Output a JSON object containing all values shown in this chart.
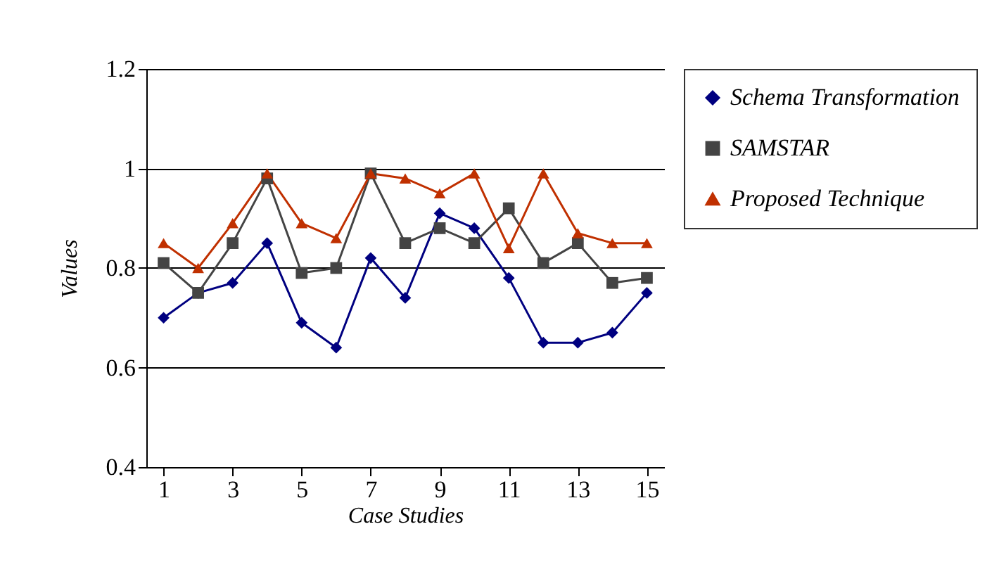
{
  "chart_data": {
    "type": "line",
    "xlabel": "Case Studies",
    "ylabel": "Values",
    "x": [
      1,
      2,
      3,
      4,
      5,
      6,
      7,
      8,
      9,
      10,
      11,
      12,
      13,
      14,
      15
    ],
    "xlim": [
      0.5,
      15.5
    ],
    "xticks": [
      1,
      3,
      5,
      7,
      9,
      11,
      13,
      15
    ],
    "ylim": [
      0.4,
      1.2
    ],
    "yticks": [
      0.4,
      0.6,
      0.8,
      1,
      1.2
    ],
    "grid": "y",
    "legend": "right",
    "series": [
      {
        "name": "Schema Transformation",
        "color": "#000080",
        "marker": "diamond",
        "values": [
          0.7,
          0.75,
          0.77,
          0.85,
          0.69,
          0.64,
          0.82,
          0.74,
          0.91,
          0.88,
          0.78,
          0.65,
          0.65,
          0.67,
          0.75
        ]
      },
      {
        "name": "SAMSTAR",
        "color": "#444444",
        "marker": "square",
        "values": [
          0.81,
          0.75,
          0.85,
          0.98,
          0.79,
          0.8,
          0.99,
          0.85,
          0.88,
          0.85,
          0.92,
          0.81,
          0.85,
          0.77,
          0.78
        ]
      },
      {
        "name": "Proposed Technique",
        "color": "#c03000",
        "marker": "triangle",
        "values": [
          0.85,
          0.8,
          0.89,
          0.99,
          0.89,
          0.86,
          0.99,
          0.98,
          0.95,
          0.99,
          0.84,
          0.99,
          0.87,
          0.85,
          0.85
        ]
      }
    ]
  }
}
